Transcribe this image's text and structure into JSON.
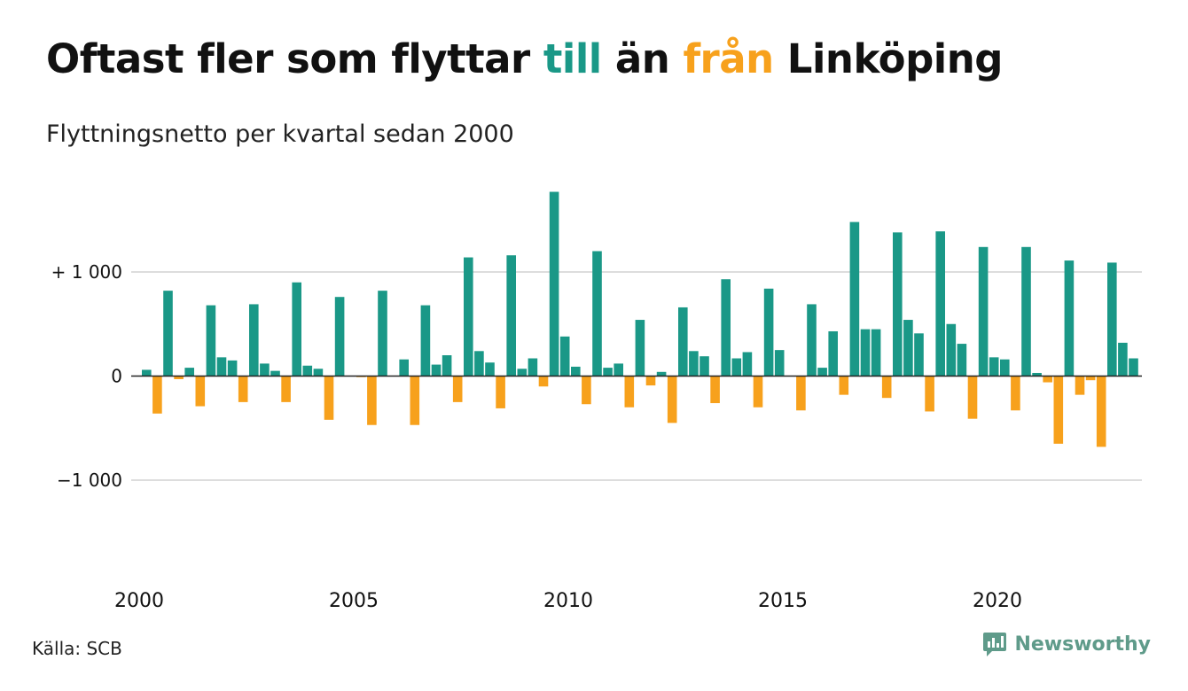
{
  "title": {
    "part1": "Oftast fler som flyttar ",
    "till": "till",
    "part2": " än ",
    "fran": "från",
    "part3": " Linköping"
  },
  "subtitle": "Flyttningsnetto per kvartal sedan 2000",
  "source": "Källa: SCB",
  "brand": "Newsworthy",
  "colors": {
    "positive": "#1a9887",
    "negative": "#f7a11c",
    "grid": "#dddddd",
    "text": "#111111",
    "brand": "#5f9b8a"
  },
  "chart_data": {
    "type": "bar",
    "title": "Oftast fler som flyttar till än från Linköping",
    "subtitle": "Flyttningsnetto per kvartal sedan 2000",
    "start_year": 2000,
    "periods_per_year": 4,
    "ylim": [
      -1700,
      1850
    ],
    "yticks": [
      {
        "value": 1000,
        "label": "+ 1 000"
      },
      {
        "value": 0,
        "label": "0"
      },
      {
        "value": -1000,
        "label": "−1 000"
      }
    ],
    "xticks": [
      {
        "year": 2000,
        "label": "2000"
      },
      {
        "year": 2005,
        "label": "2005"
      },
      {
        "year": 2010,
        "label": "2010"
      },
      {
        "year": 2015,
        "label": "2015"
      },
      {
        "year": 2020,
        "label": "2020"
      }
    ],
    "grid": true,
    "legend": "none",
    "values": [
      60,
      -360,
      820,
      -30,
      80,
      -290,
      680,
      180,
      150,
      -250,
      690,
      120,
      50,
      -250,
      900,
      100,
      70,
      -420,
      760,
      0,
      -10,
      -470,
      820,
      0,
      160,
      -470,
      680,
      110,
      200,
      -250,
      1140,
      240,
      130,
      -310,
      1160,
      70,
      170,
      -100,
      1770,
      380,
      90,
      -270,
      1200,
      80,
      120,
      -300,
      540,
      -90,
      40,
      -450,
      660,
      240,
      190,
      -260,
      930,
      170,
      230,
      -300,
      840,
      250,
      0,
      -330,
      690,
      80,
      430,
      -180,
      1480,
      450,
      450,
      -210,
      1380,
      540,
      410,
      -340,
      1390,
      500,
      310,
      -410,
      1240,
      180,
      160,
      -330,
      1240,
      30,
      -60,
      -650,
      1110,
      -180,
      -40,
      -680,
      1090,
      320,
      170
    ]
  }
}
